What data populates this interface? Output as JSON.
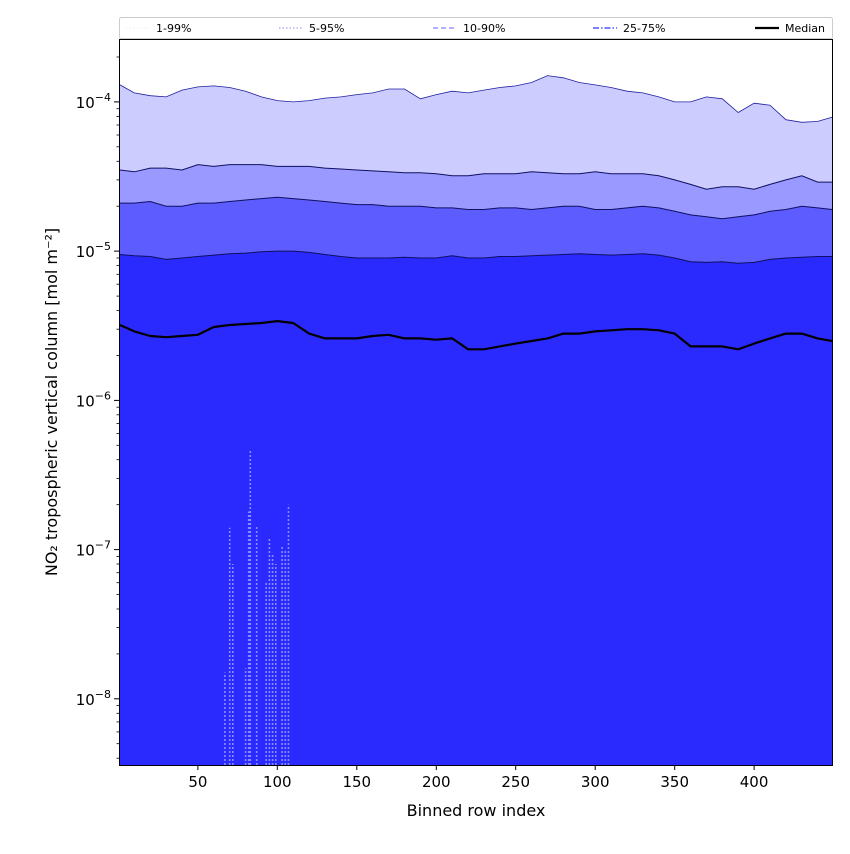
{
  "chart_data": {
    "type": "area",
    "xlabel": "Binned row index",
    "ylabel": "NO₂ tropospheric vertical column [mol m⁻²]",
    "xlim": [
      1,
      449
    ],
    "ylim": [
      3.6e-09,
      0.00026
    ],
    "y_scale": "log",
    "x_ticks": [
      50,
      100,
      150,
      200,
      250,
      300,
      350,
      400
    ],
    "x_tick_labels": [
      "50",
      "100",
      "150",
      "200",
      "250",
      "300",
      "350",
      "400"
    ],
    "y_ticks": [
      1e-08,
      1e-07,
      1e-06,
      1e-05,
      0.0001
    ],
    "y_tick_labels": [
      {
        "base": "10",
        "exp": "−8"
      },
      {
        "base": "10",
        "exp": "−7"
      },
      {
        "base": "10",
        "exp": "−6"
      },
      {
        "base": "10",
        "exp": "−5"
      },
      {
        "base": "10",
        "exp": "−4"
      }
    ],
    "grid": false,
    "legend_position": "top, above plot",
    "legend": [
      {
        "label": "1-99%",
        "style": "dotted",
        "color": "#f0f0ff"
      },
      {
        "label": "5-95%",
        "style": "dotted",
        "color": "#a0a0f0"
      },
      {
        "label": "10-90%",
        "style": "dashed",
        "color": "#8080ff"
      },
      {
        "label": "25-75%",
        "style": "dashdot",
        "color": "#3030ff"
      },
      {
        "label": "Median",
        "style": "solid",
        "color": "#000000"
      }
    ],
    "band_colors": [
      "#ccccff",
      "#9999ff",
      "#5c5cff",
      "#2a2aff"
    ],
    "x": [
      1,
      10,
      20,
      30,
      40,
      50,
      60,
      70,
      80,
      90,
      100,
      110,
      120,
      130,
      140,
      150,
      160,
      170,
      180,
      190,
      200,
      210,
      220,
      230,
      240,
      250,
      260,
      270,
      280,
      290,
      300,
      310,
      320,
      330,
      340,
      350,
      360,
      370,
      380,
      390,
      400,
      410,
      420,
      430,
      440,
      449
    ],
    "series": [
      {
        "name": "p99",
        "values": [
          0.00013,
          0.000115,
          0.00011,
          0.000108,
          0.00012,
          0.000126,
          0.000128,
          0.000125,
          0.000118,
          0.000108,
          0.000102,
          0.0001,
          0.000102,
          0.000106,
          0.000108,
          0.000112,
          0.000115,
          0.000122,
          0.000122,
          0.000105,
          0.000112,
          0.000118,
          0.000115,
          0.00012,
          0.000125,
          0.000128,
          0.000135,
          0.00015,
          0.000145,
          0.000135,
          0.00013,
          0.000125,
          0.000118,
          0.000115,
          0.000108,
          0.0001,
          0.0001,
          0.000108,
          0.000105,
          8.5e-05,
          9.8e-05,
          9.5e-05,
          7.6e-05,
          7.3e-05,
          7.4e-05,
          7.9e-05
        ]
      },
      {
        "name": "p95",
        "values": [
          3.5e-05,
          3.4e-05,
          3.6e-05,
          3.6e-05,
          3.5e-05,
          3.8e-05,
          3.7e-05,
          3.8e-05,
          3.8e-05,
          3.8e-05,
          3.7e-05,
          3.7e-05,
          3.7e-05,
          3.6e-05,
          3.55e-05,
          3.5e-05,
          3.45e-05,
          3.4e-05,
          3.35e-05,
          3.35e-05,
          3.3e-05,
          3.2e-05,
          3.2e-05,
          3.3e-05,
          3.3e-05,
          3.3e-05,
          3.4e-05,
          3.35e-05,
          3.3e-05,
          3.3e-05,
          3.4e-05,
          3.3e-05,
          3.3e-05,
          3.3e-05,
          3.2e-05,
          3e-05,
          2.8e-05,
          2.6e-05,
          2.7e-05,
          2.7e-05,
          2.6e-05,
          2.8e-05,
          3e-05,
          3.2e-05,
          2.9e-05,
          2.9e-05
        ]
      },
      {
        "name": "p90",
        "values": [
          2.1e-05,
          2.1e-05,
          2.15e-05,
          2e-05,
          2e-05,
          2.1e-05,
          2.1e-05,
          2.15e-05,
          2.2e-05,
          2.25e-05,
          2.3e-05,
          2.25e-05,
          2.2e-05,
          2.15e-05,
          2.1e-05,
          2.05e-05,
          2.05e-05,
          2e-05,
          2e-05,
          2e-05,
          1.95e-05,
          1.95e-05,
          1.9e-05,
          1.9e-05,
          1.95e-05,
          1.95e-05,
          1.9e-05,
          1.95e-05,
          2e-05,
          2e-05,
          1.9e-05,
          1.9e-05,
          1.95e-05,
          2e-05,
          1.95e-05,
          1.85e-05,
          1.75e-05,
          1.7e-05,
          1.65e-05,
          1.7e-05,
          1.75e-05,
          1.85e-05,
          1.9e-05,
          2e-05,
          1.95e-05,
          1.9e-05
        ]
      },
      {
        "name": "p75",
        "values": [
          9.5e-06,
          9.3e-06,
          9.2e-06,
          8.8e-06,
          9e-06,
          9.2e-06,
          9.4e-06,
          9.6e-06,
          9.7e-06,
          9.9e-06,
          1e-05,
          1e-05,
          9.8e-06,
          9.5e-06,
          9.2e-06,
          9e-06,
          9e-06,
          9e-06,
          9.1e-06,
          9e-06,
          9e-06,
          9.3e-06,
          9e-06,
          9e-06,
          9.2e-06,
          9.2e-06,
          9.3e-06,
          9.4e-06,
          9.5e-06,
          9.6e-06,
          9.5e-06,
          9.4e-06,
          9.5e-06,
          9.6e-06,
          9.4e-06,
          9e-06,
          8.5e-06,
          8.4e-06,
          8.5e-06,
          8.3e-06,
          8.4e-06,
          8.8e-06,
          9e-06,
          9.1e-06,
          9.2e-06,
          9.2e-06
        ]
      },
      {
        "name": "Median",
        "values": [
          3.2e-06,
          2.9e-06,
          2.7e-06,
          2.65e-06,
          2.7e-06,
          2.75e-06,
          3.1e-06,
          3.2e-06,
          3.25e-06,
          3.3e-06,
          3.4e-06,
          3.3e-06,
          2.8e-06,
          2.6e-06,
          2.6e-06,
          2.6e-06,
          2.7e-06,
          2.75e-06,
          2.6e-06,
          2.6e-06,
          2.55e-06,
          2.6e-06,
          2.2e-06,
          2.2e-06,
          2.3e-06,
          2.4e-06,
          2.5e-06,
          2.6e-06,
          2.8e-06,
          2.8e-06,
          2.9e-06,
          2.95e-06,
          3e-06,
          3e-06,
          2.95e-06,
          2.8e-06,
          2.3e-06,
          2.3e-06,
          2.3e-06,
          2.2e-06,
          2.4e-06,
          2.6e-06,
          2.8e-06,
          2.8e-06,
          2.6e-06,
          2.5e-06
        ]
      }
    ],
    "lower_spikes": [
      {
        "x": 67,
        "y": 1.5e-08
      },
      {
        "x": 70,
        "y": 1.4e-07
      },
      {
        "x": 72,
        "y": 8e-08
      },
      {
        "x": 80,
        "y": 1.6e-08
      },
      {
        "x": 82,
        "y": 1.8e-07
      },
      {
        "x": 83,
        "y": 4.6e-07
      },
      {
        "x": 87,
        "y": 1.45e-07
      },
      {
        "x": 93,
        "y": 6e-08
      },
      {
        "x": 95,
        "y": 1.2e-07
      },
      {
        "x": 97,
        "y": 9.5e-08
      },
      {
        "x": 99,
        "y": 8e-08
      },
      {
        "x": 103,
        "y": 1.05e-07
      },
      {
        "x": 105,
        "y": 1e-07
      },
      {
        "x": 107,
        "y": 2e-07
      }
    ]
  }
}
